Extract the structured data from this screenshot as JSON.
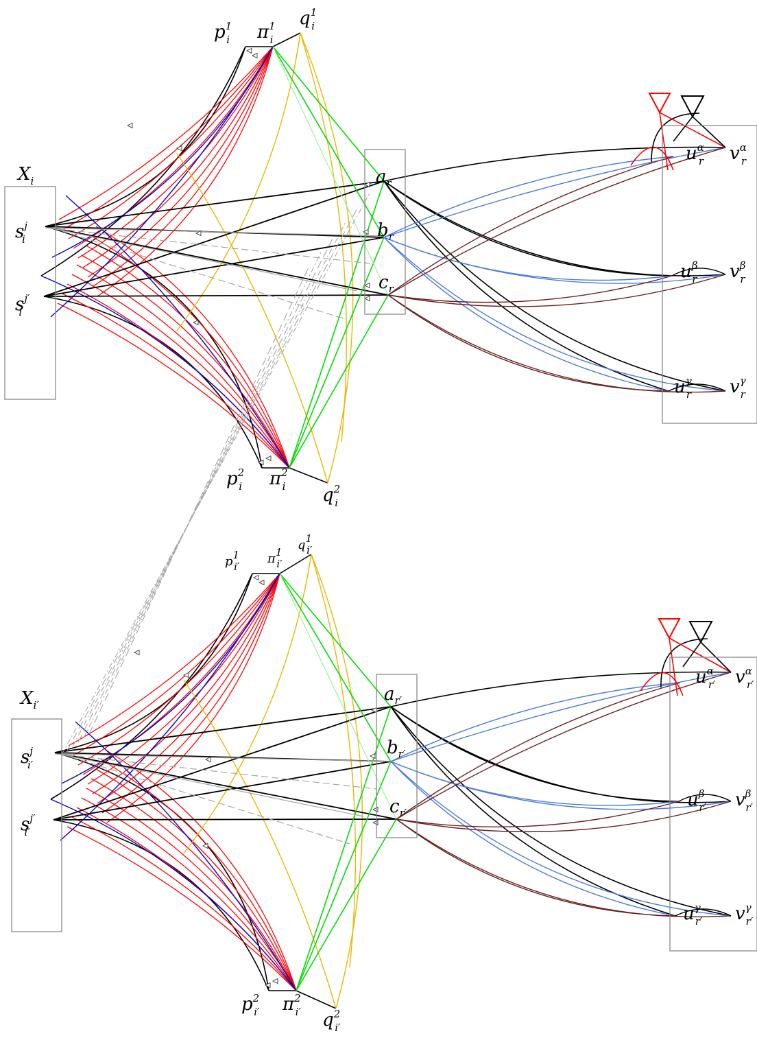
{
  "colors": {
    "black": "#000000",
    "red": "#ff0000",
    "blue": "#0000cc",
    "green": "#00dd00",
    "light_green": "#9cf29c",
    "mid_green": "#55e655",
    "yellow": "#e6b800",
    "steel_blue": "#4a7bdc",
    "dark_red": "#6b1f1f",
    "gray": "#a6a6a6",
    "box": "#888888"
  },
  "top_block": {
    "x_label": "X_i",
    "s1": {
      "base": "s",
      "sup": "j",
      "sub": "i"
    },
    "s2": {
      "base": "s",
      "sup": "j′",
      "sub": "i"
    },
    "p1": {
      "base": "p",
      "sup": "1",
      "sub": "i"
    },
    "pi1": {
      "base": "π",
      "sup": "1",
      "sub": "i"
    },
    "q1": {
      "base": "q",
      "sup": "1",
      "sub": "i"
    },
    "p2": {
      "base": "p",
      "sup": "2",
      "sub": "i"
    },
    "pi2": {
      "base": "π",
      "sup": "2",
      "sub": "i"
    },
    "q2": {
      "base": "q",
      "sup": "2",
      "sub": "i"
    },
    "a": {
      "base": "a",
      "sub": "r"
    },
    "b": {
      "base": "b",
      "sub": "r"
    },
    "c": {
      "base": "c",
      "sub": "r"
    },
    "u_alpha": {
      "base": "u",
      "sup": "α",
      "sub": "r"
    },
    "v_alpha": {
      "base": "v",
      "sup": "α",
      "sub": "r"
    },
    "u_beta": {
      "base": "u",
      "sup": "β",
      "sub": "r"
    },
    "v_beta": {
      "base": "v",
      "sup": "β",
      "sub": "r"
    },
    "u_gamma": {
      "base": "u",
      "sup": "γ",
      "sub": "r"
    },
    "v_gamma": {
      "base": "v",
      "sup": "γ",
      "sub": "r"
    }
  },
  "bottom_block": {
    "x_label": "X_i′",
    "s1": {
      "base": "s",
      "sup": "j",
      "sub": "i′"
    },
    "s2": {
      "base": "s",
      "sup": "j′",
      "sub": "i′"
    },
    "p1": {
      "base": "p",
      "sup": "1",
      "sub": "i′"
    },
    "pi1": {
      "base": "π",
      "sup": "1",
      "sub": "i′"
    },
    "q1": {
      "base": "q",
      "sup": "1",
      "sub": "i′"
    },
    "p2": {
      "base": "p",
      "sup": "2",
      "sub": "i′"
    },
    "pi2": {
      "base": "π",
      "sup": "2",
      "sub": "i′"
    },
    "q2": {
      "base": "q",
      "sup": "2",
      "sub": "i′"
    },
    "a": {
      "base": "a",
      "sub": "r′"
    },
    "b": {
      "base": "b",
      "sub": "r′"
    },
    "c": {
      "base": "c",
      "sub": "r′"
    },
    "u_alpha": {
      "base": "u",
      "sup": "α",
      "sub": "r′"
    },
    "v_alpha": {
      "base": "v",
      "sup": "α",
      "sub": "r′"
    },
    "u_beta": {
      "base": "u",
      "sup": "β",
      "sub": "r′"
    },
    "v_beta": {
      "base": "v",
      "sup": "β",
      "sub": "r′"
    },
    "u_gamma": {
      "base": "u",
      "sup": "γ",
      "sub": "r′"
    },
    "v_gamma": {
      "base": "v",
      "sup": "γ",
      "sub": "r′"
    }
  }
}
